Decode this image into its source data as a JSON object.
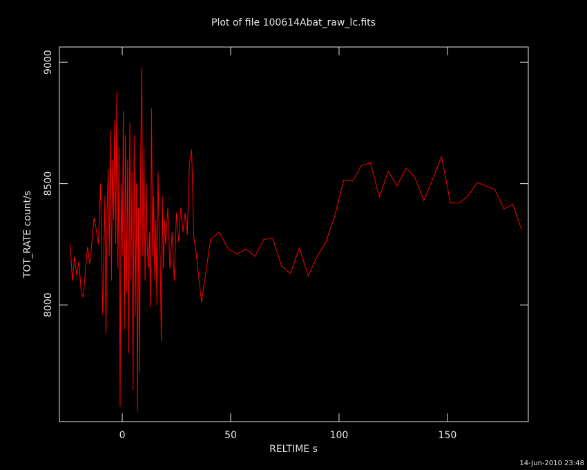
{
  "chart_data": {
    "type": "line",
    "title": "Plot of file 100614Abat_raw_lc.fits",
    "x_label": "RELTIME  s",
    "y_label": "TOT_RATE  count/s",
    "timestamp": "14-Jun-2010 23:48",
    "x": [
      -24,
      -23,
      -22,
      -21,
      -20,
      -19,
      -18,
      -17,
      -16,
      -15,
      -14,
      -13,
      -12,
      -11,
      -10,
      -9,
      -8,
      -7.5,
      -7,
      -6.5,
      -6,
      -5.5,
      -5,
      -4.5,
      -4,
      -3.5,
      -3,
      -2.5,
      -2,
      -1.5,
      -1,
      -0.5,
      0,
      0.5,
      1,
      1.5,
      2,
      2.5,
      3,
      3.5,
      4,
      4.5,
      5,
      5.5,
      6,
      6.5,
      7,
      7.5,
      8,
      8.5,
      9,
      9.5,
      10,
      10.5,
      11,
      11.5,
      12,
      12.5,
      13,
      13.5,
      14,
      14.5,
      15,
      15.5,
      16,
      16.5,
      17,
      17.5,
      18,
      18.5,
      19,
      19.5,
      20,
      21,
      22,
      23,
      24,
      25,
      26,
      27,
      28,
      29,
      30,
      31,
      32,
      33,
      34,
      36.6,
      40.7,
      44.8,
      48.9,
      53,
      57.1,
      61.2,
      65.3,
      69.4,
      73.5,
      77.6,
      81.7,
      85.8,
      89.9,
      94,
      98.1,
      102.2,
      106.3,
      110.4,
      114.5,
      118.6,
      122.7,
      126.8,
      130.9,
      135,
      139.1,
      143.2,
      147.3,
      151.4,
      155.5,
      159.6,
      163.7,
      167.8,
      171.9,
      176,
      180.1,
      184.2
    ],
    "series": [
      {
        "color": "#ff0000",
        "values": [
          8250,
          8100,
          8200,
          8120,
          8180,
          8060,
          8030,
          8140,
          8240,
          8170,
          8260,
          8360,
          8310,
          8250,
          8500,
          7960,
          8450,
          7880,
          8380,
          8560,
          8200,
          8720,
          8100,
          8600,
          8350,
          8760,
          8250,
          8880,
          8150,
          8650,
          7580,
          8500,
          8200,
          8800,
          7900,
          8700,
          8050,
          8600,
          7800,
          8750,
          8100,
          8550,
          7650,
          8700,
          7950,
          8500,
          7560,
          8400,
          7720,
          8600,
          8980,
          8200,
          8650,
          8100,
          8500,
          8250,
          8150,
          8300,
          7990,
          8810,
          8200,
          8450,
          8100,
          8350,
          8000,
          8550,
          8300,
          8200,
          7850,
          8450,
          8150,
          8350,
          8250,
          8400,
          8150,
          8300,
          8100,
          8380,
          8260,
          8400,
          8300,
          8380,
          8290,
          8580,
          8640,
          8280,
          8220,
          8010,
          8270,
          8300,
          8230,
          8210,
          8230,
          8200,
          8270,
          8275,
          8160,
          8130,
          8235,
          8120,
          8200,
          8260,
          8370,
          8515,
          8510,
          8575,
          8585,
          8445,
          8550,
          8490,
          8565,
          8525,
          8430,
          8520,
          8610,
          8420,
          8420,
          8450,
          8505,
          8490,
          8475,
          8395,
          8415,
          8310
        ]
      }
    ],
    "xlim": [
      -29,
      187.3
    ],
    "ylim": [
      7519,
      9063
    ],
    "xticks": [
      0,
      50,
      100,
      150
    ],
    "yticks": [
      8000,
      8500,
      9000
    ]
  }
}
